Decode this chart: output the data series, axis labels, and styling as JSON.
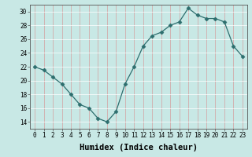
{
  "x": [
    0,
    1,
    2,
    3,
    4,
    5,
    6,
    7,
    8,
    9,
    10,
    11,
    12,
    13,
    14,
    15,
    16,
    17,
    18,
    19,
    20,
    21,
    22,
    23
  ],
  "y": [
    22,
    21.5,
    20.5,
    19.5,
    18,
    16.5,
    16,
    14.5,
    14,
    15.5,
    19.5,
    22,
    25,
    26.5,
    27,
    28,
    28.5,
    30.5,
    29.5,
    29,
    29,
    28.5,
    25,
    23.5
  ],
  "xlabel": "Humidex (Indice chaleur)",
  "xlim": [
    -0.5,
    23.5
  ],
  "ylim": [
    13,
    31
  ],
  "yticks": [
    14,
    16,
    18,
    20,
    22,
    24,
    26,
    28,
    30
  ],
  "xticks": [
    0,
    1,
    2,
    3,
    4,
    5,
    6,
    7,
    8,
    9,
    10,
    11,
    12,
    13,
    14,
    15,
    16,
    17,
    18,
    19,
    20,
    21,
    22,
    23
  ],
  "line_color": "#2d6e6e",
  "marker": "D",
  "marker_size": 2.5,
  "bg_color": "#c8e8e5",
  "grid_color": "#e0b8b8",
  "tick_label_fontsize": 5.5,
  "xlabel_fontsize": 7.5
}
